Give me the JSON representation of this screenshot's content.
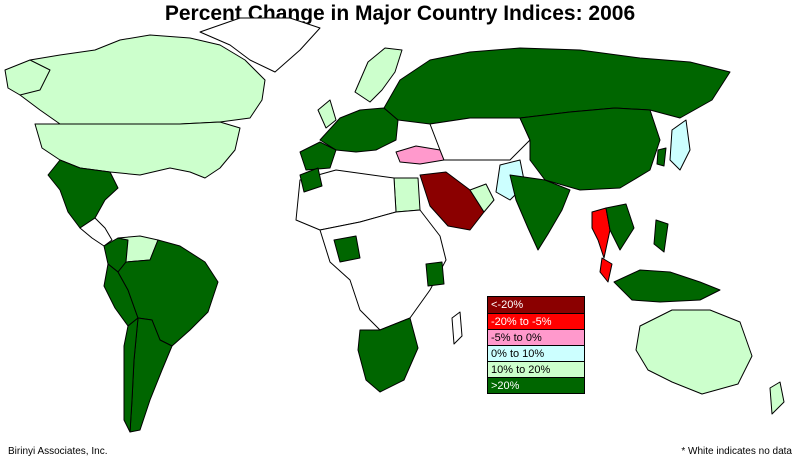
{
  "title": "Percent Change in Major Country Indices: 2006",
  "credit": "Birinyi Associates, Inc.",
  "footnote": "* White indicates no data",
  "legend": [
    {
      "label": "<-20%",
      "color": "#8b0000",
      "text_color": "#ffffff"
    },
    {
      "label": "-20% to -5%",
      "color": "#ff0000",
      "text_color": "#ffffff"
    },
    {
      "label": "-5% to 0%",
      "color": "#ff99cc",
      "text_color": "#000000"
    },
    {
      "label": "0% to 10%",
      "color": "#ccffff",
      "text_color": "#000000"
    },
    {
      "label": "10% to 20%",
      "color": "#ccffcc",
      "text_color": "#000000"
    },
    {
      "label": ">20%",
      "color": "#006600",
      "text_color": "#ffffff"
    }
  ],
  "colors": {
    "lt_-20": "#8b0000",
    "m20_m5": "#ff0000",
    "m5_0": "#ff99cc",
    "0_10": "#ccffff",
    "10_20": "#ccffcc",
    "gt_20": "#006600",
    "no_data": "#ffffff"
  }
}
